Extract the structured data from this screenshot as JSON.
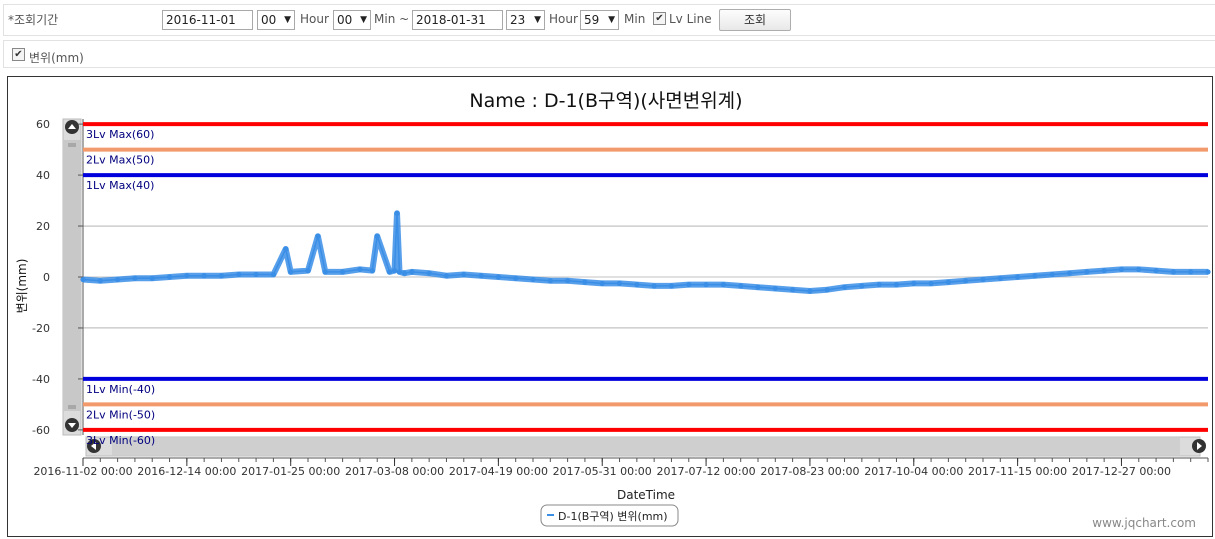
{
  "filter": {
    "period_label": "*조회기간",
    "start_date": "2016-11-01",
    "start_hour": "00",
    "hour_label": "Hour",
    "start_min": "00",
    "min_label": "Min ~",
    "end_date": "2018-01-31",
    "end_hour": "23",
    "end_hour_label": "Hour",
    "end_min": "59",
    "end_min_label": "Min",
    "lv_line_label": "Lv Line",
    "lv_line_checked": "✔",
    "search_button": "조회"
  },
  "series_toggle": {
    "checked": "✔",
    "label": "변위(mm)"
  },
  "watermark": "www.jqchart.com",
  "colors": {
    "lv3": "#ff0000",
    "lv2": "#f29a6c",
    "lv1": "#0000dd",
    "series": "#3a8ee6",
    "label": "#00007f"
  },
  "chart_data": {
    "type": "scatter",
    "title": "Name : D-1(B구역)(사면변위계)",
    "xlabel": "DateTime",
    "ylabel": "변위(mm)",
    "ylim": [
      -62,
      62
    ],
    "yticks": [
      "60",
      "40",
      "20",
      "0",
      "-20",
      "-40",
      "-60"
    ],
    "ytick_values": [
      60,
      40,
      20,
      0,
      -20,
      -40,
      -60
    ],
    "xticks": [
      "2016-11-02 00:00",
      "2016-12-14 00:00",
      "2017-01-25 00:00",
      "2017-03-08 00:00",
      "2017-04-19 00:00",
      "2017-05-31 00:00",
      "2017-07-12 00:00",
      "2017-08-23 00:00",
      "2017-10-04 00:00",
      "2017-11-15 00:00",
      "2017-12-27 00:00"
    ],
    "xlim": [
      "2016-11-02",
      "2018-01-31"
    ],
    "grid": true,
    "legend_position": "bottom-center",
    "threshold_lines": [
      {
        "label": "3Lv Max(60)",
        "value": 60,
        "level": "lv3"
      },
      {
        "label": "2Lv Max(50)",
        "value": 50,
        "level": "lv2"
      },
      {
        "label": "1Lv Max(40)",
        "value": 40,
        "level": "lv1"
      },
      {
        "label": "1Lv Min(-40)",
        "value": -40,
        "level": "lv1"
      },
      {
        "label": "2Lv Min(-50)",
        "value": -50,
        "level": "lv2"
      },
      {
        "label": "3Lv Min(-60)",
        "value": -60,
        "level": "lv3"
      }
    ],
    "series": [
      {
        "name": "D-1(B구역) 변위(mm)",
        "x": [
          "2016-11-02",
          "2016-11-09",
          "2016-11-16",
          "2016-11-23",
          "2016-11-30",
          "2016-12-07",
          "2016-12-14",
          "2016-12-21",
          "2016-12-28",
          "2017-01-04",
          "2017-01-11",
          "2017-01-18",
          "2017-01-23",
          "2017-01-25",
          "2017-02-01",
          "2017-02-05",
          "2017-02-08",
          "2017-02-15",
          "2017-02-22",
          "2017-02-27",
          "2017-03-01",
          "2017-03-06",
          "2017-03-08",
          "2017-03-09",
          "2017-03-10",
          "2017-03-12",
          "2017-03-15",
          "2017-03-22",
          "2017-03-29",
          "2017-04-05",
          "2017-04-12",
          "2017-04-19",
          "2017-04-26",
          "2017-05-03",
          "2017-05-10",
          "2017-05-17",
          "2017-05-24",
          "2017-05-31",
          "2017-06-07",
          "2017-06-14",
          "2017-06-21",
          "2017-06-28",
          "2017-07-05",
          "2017-07-12",
          "2017-07-19",
          "2017-07-26",
          "2017-08-02",
          "2017-08-09",
          "2017-08-16",
          "2017-08-23",
          "2017-08-30",
          "2017-09-06",
          "2017-09-13",
          "2017-09-20",
          "2017-09-27",
          "2017-10-04",
          "2017-10-11",
          "2017-10-18",
          "2017-10-25",
          "2017-11-01",
          "2017-11-08",
          "2017-11-15",
          "2017-11-22",
          "2017-11-29",
          "2017-12-06",
          "2017-12-13",
          "2017-12-20",
          "2017-12-27",
          "2018-01-03",
          "2018-01-10",
          "2018-01-17",
          "2018-01-24",
          "2018-01-31"
        ],
        "y": [
          -1,
          -1.5,
          -1,
          -0.5,
          -0.5,
          0,
          0.5,
          0.5,
          0.5,
          1,
          1,
          1,
          11,
          2,
          2.5,
          16,
          2,
          2,
          3,
          2.5,
          16,
          2,
          2.5,
          25,
          2,
          1.5,
          2,
          1.5,
          0.5,
          1,
          0.5,
          0,
          -0.5,
          -1,
          -1.5,
          -1.5,
          -2,
          -2.5,
          -2.5,
          -3,
          -3.5,
          -3.5,
          -3,
          -3,
          -3,
          -3.5,
          -4,
          -4.5,
          -5,
          -5.5,
          -5,
          -4,
          -3.5,
          -3,
          -3,
          -2.5,
          -2.5,
          -2,
          -1.5,
          -1,
          -0.5,
          0,
          0.5,
          1,
          1.5,
          2,
          2.5,
          3,
          3,
          2.5,
          2,
          2,
          2
        ]
      }
    ]
  }
}
